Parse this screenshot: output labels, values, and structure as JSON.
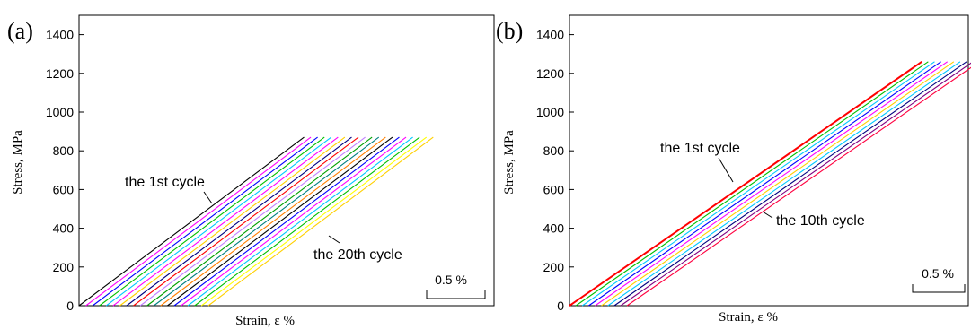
{
  "chart_data": [
    {
      "type": "line",
      "panel_label": "(a)",
      "xlabel": "Strain, ε  %",
      "ylabel": "Stress, MPa",
      "ylim": [
        0,
        1500
      ],
      "yticks": [
        0,
        200,
        400,
        600,
        800,
        1000,
        1200,
        1400
      ],
      "xticks": [],
      "xlim": [
        0,
        4.15
      ],
      "grid": false,
      "scale_bar_label": "0.5 %",
      "scale_bar_value": 0.5,
      "cycles": 20,
      "peak_stress": 870,
      "first_cycle": {
        "start_strain": 0.0,
        "end_strain": 2.25
      },
      "cycle_offset_strain": 0.068,
      "annotations": [
        {
          "text": "the 1st cycle",
          "x": 1.3,
          "y": 620
        },
        {
          "text": "the 20th cycle",
          "x": 2.55,
          "y": 330
        }
      ],
      "series_colors": [
        "#000000",
        "#ff00ff",
        "#0000ff",
        "#00c000",
        "#00c8ff",
        "#ff00ff",
        "#ffd000",
        "#000080",
        "#ff0000",
        "#c080ff",
        "#00a000",
        "#008080",
        "#ff8000",
        "#000000",
        "#0000ff",
        "#ff00ff",
        "#00c8ff",
        "#00c000",
        "#ffff00",
        "#ffd000"
      ]
    },
    {
      "type": "line",
      "panel_label": "(b)",
      "xlabel": "Strain, ε  %",
      "ylabel": "Stress, MPa",
      "ylim": [
        0,
        1500
      ],
      "yticks": [
        0,
        200,
        400,
        600,
        800,
        1000,
        1200,
        1400
      ],
      "xticks": [],
      "xlim": [
        0,
        3.43
      ],
      "grid": false,
      "scale_bar_label": "0.5 %",
      "scale_bar_value": 0.5,
      "cycles": 10,
      "peak_stress": 1260,
      "first_cycle": {
        "start_strain": 0.0,
        "end_strain": 3.03
      },
      "cycle_offset_strain": 0.055,
      "annotations": [
        {
          "text": "the 1st cycle",
          "x": 1.05,
          "y": 760
        },
        {
          "text": "the 10th cycle",
          "x": 1.62,
          "y": 420
        }
      ],
      "series_colors": [
        "#ff0000",
        "#00c000",
        "#00c8ff",
        "#0000ff",
        "#ff00ff",
        "#ffd000",
        "#00c8ff",
        "#000080",
        "#800080",
        "#ff0040"
      ]
    }
  ]
}
